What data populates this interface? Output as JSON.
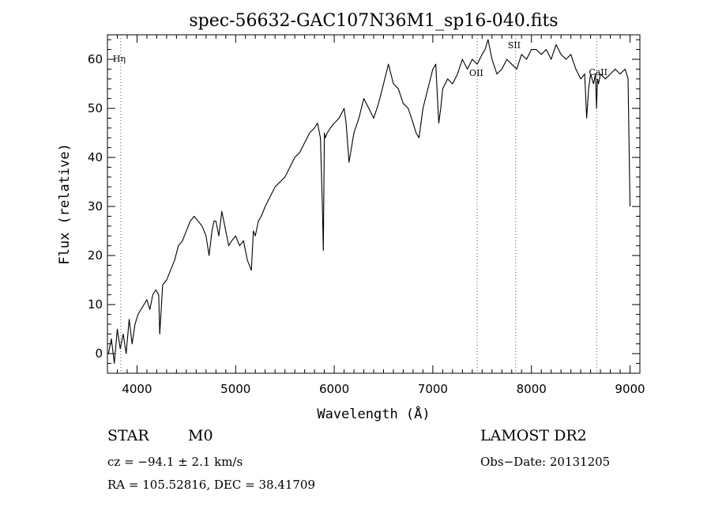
{
  "chart_data": {
    "type": "line",
    "title": "spec-56632-GAC107N36M1_sp16-040.fits",
    "xlabel": "Wavelength (Å)",
    "ylabel": "Flux (relative)",
    "xlim": [
      3700,
      9100
    ],
    "ylim": [
      -4,
      65
    ],
    "x_ticks": [
      4000,
      5000,
      6000,
      7000,
      8000,
      9000
    ],
    "y_ticks": [
      0,
      10,
      20,
      30,
      40,
      50,
      60
    ],
    "grid": false,
    "line_color": "#000000",
    "spectral_lines": [
      {
        "name": "Hη",
        "wavelength": 3835
      },
      {
        "name": "OII",
        "wavelength": 7450
      },
      {
        "name": "SII",
        "wavelength": 7840
      },
      {
        "name": "CaII",
        "wavelength": 8662
      }
    ],
    "series": [
      {
        "x": [
          3710,
          3740,
          3770,
          3800,
          3830,
          3860,
          3890,
          3920,
          3950,
          3980,
          4010,
          4040,
          4070,
          4100,
          4130,
          4160,
          4190,
          4220,
          4230,
          4260,
          4300,
          4340,
          4380,
          4420,
          4460,
          4500,
          4540,
          4580,
          4620,
          4660,
          4700,
          4730,
          4760,
          4780,
          4800,
          4830,
          4860,
          4900,
          4930,
          4960,
          5000,
          5040,
          5080,
          5120,
          5160,
          5180,
          5200,
          5230,
          5260,
          5300,
          5350,
          5400,
          5450,
          5500,
          5550,
          5600,
          5650,
          5700,
          5750,
          5800,
          5830,
          5860,
          5880,
          5890,
          5900,
          5910,
          5930,
          5960,
          6000,
          6050,
          6100,
          6120,
          6150,
          6200,
          6250,
          6300,
          6350,
          6400,
          6450,
          6500,
          6550,
          6600,
          6650,
          6700,
          6750,
          6800,
          6830,
          6860,
          6900,
          6950,
          7000,
          7030,
          7060,
          7080,
          7100,
          7150,
          7200,
          7250,
          7300,
          7350,
          7400,
          7450,
          7500,
          7530,
          7560,
          7600,
          7650,
          7700,
          7750,
          7800,
          7850,
          7900,
          7950,
          8000,
          8050,
          8100,
          8150,
          8200,
          8250,
          8300,
          8350,
          8400,
          8450,
          8500,
          8540,
          8560,
          8580,
          8600,
          8630,
          8650,
          8660,
          8670,
          8680,
          8700,
          8750,
          8800,
          8850,
          8900,
          8950,
          8980,
          9000
        ],
        "y": [
          0,
          3,
          -2,
          5,
          1,
          4,
          0,
          7,
          2,
          6,
          8,
          9,
          10,
          11,
          9,
          12,
          13,
          12,
          4,
          14,
          15,
          17,
          19,
          22,
          23,
          25,
          27,
          28,
          27,
          26,
          24,
          20,
          25,
          27,
          27,
          24,
          29,
          25,
          22,
          23,
          24,
          22,
          23,
          19,
          17,
          25,
          24,
          27,
          28,
          30,
          32,
          34,
          35,
          36,
          38,
          40,
          41,
          43,
          45,
          46,
          47,
          44,
          30,
          21,
          45,
          44,
          45,
          46,
          47,
          48,
          50,
          47,
          39,
          45,
          48,
          52,
          50,
          48,
          51,
          55,
          59,
          55,
          54,
          51,
          50,
          47,
          45,
          44,
          50,
          54,
          58,
          59,
          47,
          50,
          54,
          56,
          55,
          57,
          60,
          58,
          60,
          59,
          61,
          62,
          64,
          60,
          57,
          58,
          60,
          59,
          58,
          61,
          60,
          62,
          62,
          61,
          62,
          60,
          63,
          61,
          60,
          61,
          58,
          56,
          57,
          48,
          54,
          57,
          55,
          57,
          50,
          56,
          55,
          57,
          56,
          57,
          58,
          57,
          58,
          56,
          30
        ]
      }
    ]
  },
  "info": {
    "class_label": "STAR",
    "subclass_label": "M0",
    "survey": "LAMOST DR2",
    "cz": "cz = −94.1 ± 2.1 km/s",
    "obs_date": "Obs−Date: 20131205",
    "radec": "RA = 105.52816, DEC =  38.41709"
  }
}
